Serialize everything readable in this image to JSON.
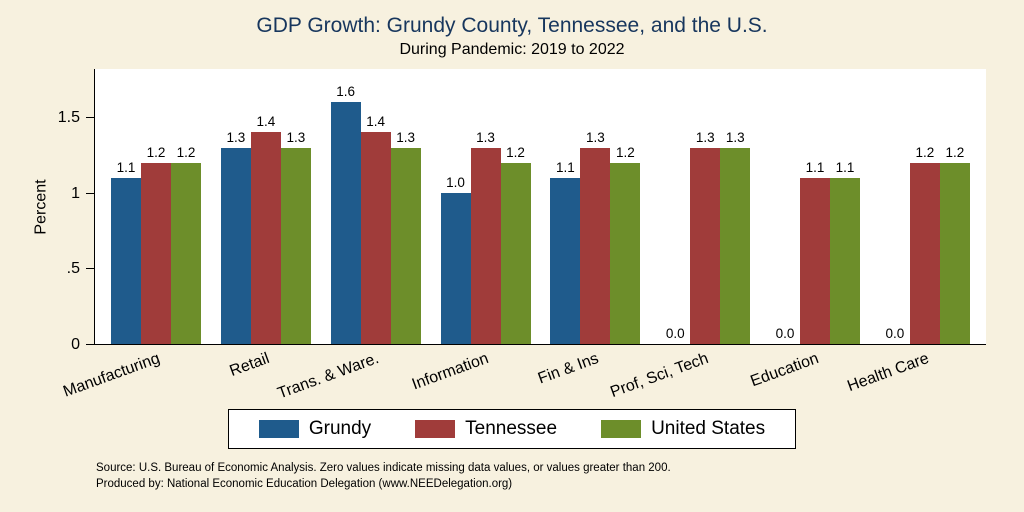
{
  "chart_data": {
    "type": "bar",
    "title": "GDP Growth: Grundy County, Tennessee, and the U.S.",
    "subtitle": "During Pandemic: 2019 to 2022",
    "ylabel": "Percent",
    "xlabel": "",
    "ylim": [
      0,
      1.8
    ],
    "yticks": [
      0,
      0.5,
      1,
      1.5
    ],
    "ytick_labels": [
      "0",
      ".5",
      "1",
      "1.5"
    ],
    "grid": false,
    "legend_position": "bottom",
    "categories": [
      "Manufacturing",
      "Retail",
      "Trans. & Ware.",
      "Information",
      "Fin & Ins",
      "Prof, Sci, Tech",
      "Education",
      "Health Care"
    ],
    "series": [
      {
        "name": "Grundy",
        "color": "#1f5b8c",
        "values": [
          1.1,
          1.3,
          1.6,
          1.0,
          1.1,
          0.0,
          0.0,
          0.0
        ]
      },
      {
        "name": "Tennessee",
        "color": "#a03c3a",
        "values": [
          1.2,
          1.4,
          1.4,
          1.3,
          1.3,
          1.3,
          1.1,
          1.2
        ]
      },
      {
        "name": "United States",
        "color": "#6d8e2a",
        "values": [
          1.2,
          1.3,
          1.3,
          1.2,
          1.2,
          1.3,
          1.1,
          1.2
        ]
      }
    ]
  },
  "source_note": {
    "line1": "Source: U.S. Bureau of Economic Analysis. Zero values indicate missing data values, or values greater than 200.",
    "line2": "Produced by: National Economic Education Delegation (www.NEEDelegation.org)"
  },
  "colors": {
    "background": "#f7f1df",
    "plot_background": "#ffffff",
    "title_text": "#17365d",
    "axis": "#000000"
  }
}
